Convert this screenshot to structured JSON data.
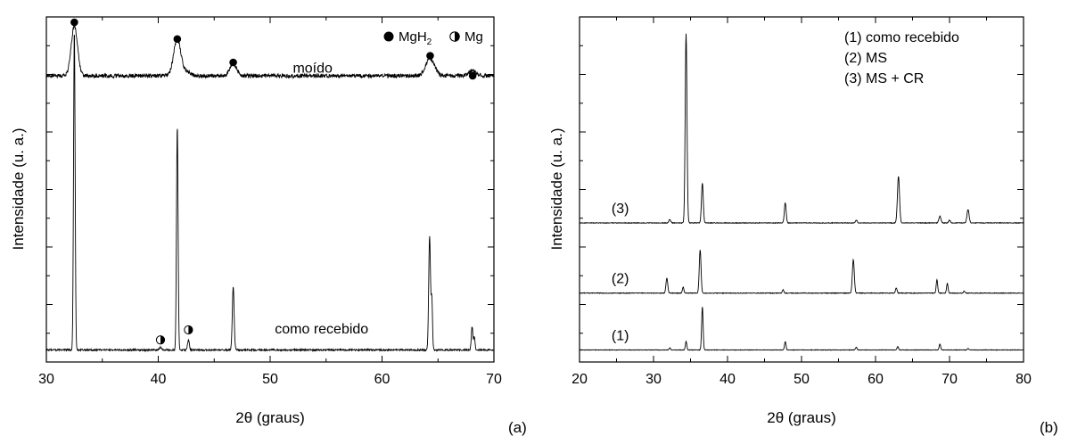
{
  "chart_data": [
    {
      "type": "line",
      "panel_label": "(a)",
      "xlabel": "2θ (graus)",
      "ylabel": "Intensidade (u. a.)",
      "xlim": [
        30,
        70
      ],
      "x_ticks": [
        30,
        40,
        50,
        60,
        70
      ],
      "y_tick_labels": false,
      "grid": false,
      "legend": {
        "placement": "top-right",
        "items": [
          {
            "symbol": "filled-circle",
            "label_main": "MgH",
            "label_sub": "2"
          },
          {
            "symbol": "half-circle",
            "label_main": "Mg",
            "label_sub": ""
          }
        ]
      },
      "series": [
        {
          "name": "moído",
          "offset": 0.82,
          "baseline_amplitude": 0.012,
          "peaks": [
            {
              "x": 32.5,
              "height": 0.15,
              "width": 0.28
            },
            {
              "x": 41.7,
              "height": 0.11,
              "width": 0.32
            },
            {
              "x": 42.6,
              "height": 0.012,
              "width": 0.3
            },
            {
              "x": 46.7,
              "height": 0.035,
              "width": 0.3
            },
            {
              "x": 64.3,
              "height": 0.05,
              "width": 0.4
            },
            {
              "x": 68.1,
              "height": 0.015,
              "width": 0.3
            }
          ]
        },
        {
          "name": "como recebido",
          "offset": 0.0,
          "baseline_amplitude": 0.005,
          "peaks": [
            {
              "x": 32.5,
              "height": 0.96,
              "width": 0.07
            },
            {
              "x": 40.2,
              "height": 0.008,
              "width": 0.08
            },
            {
              "x": 41.7,
              "height": 0.67,
              "width": 0.07
            },
            {
              "x": 42.7,
              "height": 0.03,
              "width": 0.08
            },
            {
              "x": 46.7,
              "height": 0.19,
              "width": 0.08
            },
            {
              "x": 64.25,
              "height": 0.34,
              "width": 0.08
            },
            {
              "x": 64.45,
              "height": 0.15,
              "width": 0.06
            },
            {
              "x": 68.05,
              "height": 0.07,
              "width": 0.07
            },
            {
              "x": 68.25,
              "height": 0.04,
              "width": 0.06
            }
          ]
        }
      ],
      "markers": [
        {
          "symbol": "filled-circle",
          "x": 32.5,
          "y": 1.0
        },
        {
          "symbol": "filled-circle",
          "x": 41.7,
          "y": 0.95
        },
        {
          "symbol": "filled-circle",
          "x": 46.7,
          "y": 0.88
        },
        {
          "symbol": "filled-circle",
          "x": 64.3,
          "y": 0.9
        },
        {
          "symbol": "filled-circle",
          "x": 68.1,
          "y": 0.84
        },
        {
          "symbol": "half-circle",
          "x": 40.2,
          "y": 0.05
        },
        {
          "symbol": "half-circle",
          "x": 42.7,
          "y": 0.08
        }
      ],
      "series_labels": [
        {
          "text": "moído",
          "x": 53.8,
          "y": 0.85
        },
        {
          "text": "como recebido",
          "x": 54.6,
          "y": 0.07
        }
      ]
    },
    {
      "type": "line",
      "panel_label": "(b)",
      "xlabel": "2θ (graus)",
      "ylabel": "Intensidade (u. a.)",
      "xlim": [
        20,
        80
      ],
      "x_ticks": [
        20,
        30,
        40,
        50,
        60,
        70,
        80
      ],
      "y_tick_labels": false,
      "grid": false,
      "legend": {
        "placement": "top-right",
        "items": [
          {
            "label": "(1) como recebido"
          },
          {
            "label": "(2) MS"
          },
          {
            "label": "(3) MS + CR"
          }
        ]
      },
      "series": [
        {
          "name": "(3)",
          "offset": 0.4,
          "baseline_amplitude": 0.002,
          "peaks": [
            {
              "x": 32.2,
              "height": 0.01,
              "width": 0.12
            },
            {
              "x": 34.4,
              "height": 0.57,
              "width": 0.12
            },
            {
              "x": 36.6,
              "height": 0.12,
              "width": 0.12
            },
            {
              "x": 47.8,
              "height": 0.06,
              "width": 0.12
            },
            {
              "x": 57.4,
              "height": 0.008,
              "width": 0.12
            },
            {
              "x": 63.1,
              "height": 0.14,
              "width": 0.14
            },
            {
              "x": 68.7,
              "height": 0.02,
              "width": 0.14
            },
            {
              "x": 70.0,
              "height": 0.008,
              "width": 0.12
            },
            {
              "x": 72.5,
              "height": 0.04,
              "width": 0.14
            }
          ]
        },
        {
          "name": "(2)",
          "offset": 0.19,
          "baseline_amplitude": 0.002,
          "peaks": [
            {
              "x": 31.8,
              "height": 0.045,
              "width": 0.12
            },
            {
              "x": 34.0,
              "height": 0.018,
              "width": 0.1
            },
            {
              "x": 36.3,
              "height": 0.13,
              "width": 0.12
            },
            {
              "x": 47.5,
              "height": 0.01,
              "width": 0.1
            },
            {
              "x": 57.0,
              "height": 0.1,
              "width": 0.13
            },
            {
              "x": 62.8,
              "height": 0.016,
              "width": 0.1
            },
            {
              "x": 68.3,
              "height": 0.04,
              "width": 0.1
            },
            {
              "x": 69.7,
              "height": 0.03,
              "width": 0.1
            },
            {
              "x": 72.0,
              "height": 0.006,
              "width": 0.1
            }
          ]
        },
        {
          "name": "(1)",
          "offset": 0.02,
          "baseline_amplitude": 0.0015,
          "peaks": [
            {
              "x": 32.2,
              "height": 0.006,
              "width": 0.1
            },
            {
              "x": 34.4,
              "height": 0.025,
              "width": 0.1
            },
            {
              "x": 36.6,
              "height": 0.13,
              "width": 0.1
            },
            {
              "x": 47.8,
              "height": 0.025,
              "width": 0.1
            },
            {
              "x": 57.4,
              "height": 0.008,
              "width": 0.1
            },
            {
              "x": 63.0,
              "height": 0.01,
              "width": 0.1
            },
            {
              "x": 68.7,
              "height": 0.018,
              "width": 0.1
            },
            {
              "x": 72.5,
              "height": 0.004,
              "width": 0.1
            }
          ]
        }
      ],
      "series_labels": [
        {
          "text": "(3)",
          "x": 25.5,
          "y": 0.43
        },
        {
          "text": "(2)",
          "x": 25.5,
          "y": 0.22
        },
        {
          "text": "(1)",
          "x": 25.5,
          "y": 0.05
        }
      ]
    }
  ]
}
